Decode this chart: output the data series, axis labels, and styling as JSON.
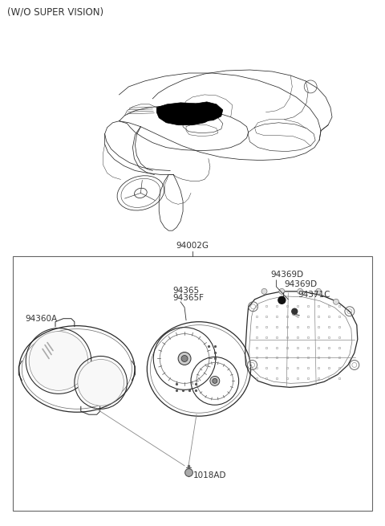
{
  "title": "(W/O SUPER VISION)",
  "bg": "#ffffff",
  "lc": "#333333",
  "tc": "#333333",
  "label_94002G": "94002G",
  "label_94360A": "94360A",
  "label_94365": "94365",
  "label_94365F": "94365F",
  "label_94369D_1": "94369D",
  "label_94369D_2": "94369D",
  "label_94371C": "94371C",
  "label_1018AD": "1018AD",
  "fig_w": 4.8,
  "fig_h": 6.55,
  "dpi": 100
}
